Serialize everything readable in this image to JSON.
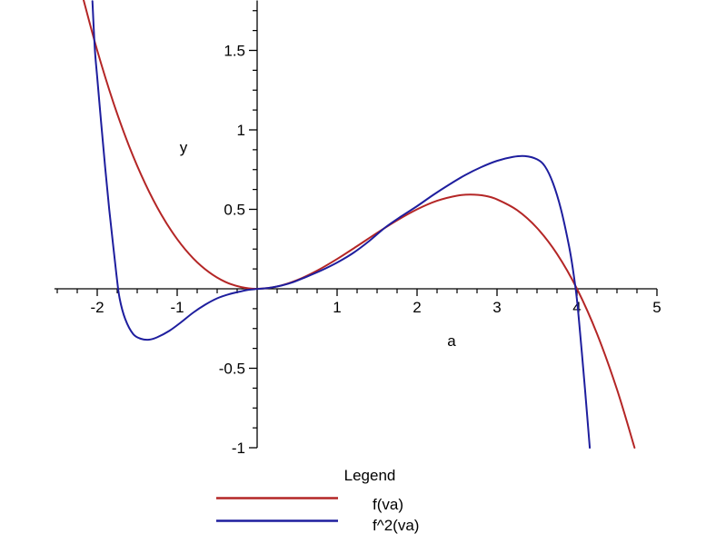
{
  "chart_data": {
    "type": "line",
    "title": "",
    "xlabel": "a",
    "ylabel": "y",
    "xlim": [
      -2.535,
      5.0
    ],
    "ylim": [
      -1.0,
      1.82
    ],
    "grid": false,
    "axis_color": "#000000",
    "x_major_ticks": [
      -2,
      -1,
      1,
      2,
      3,
      4,
      5
    ],
    "x_tick_labels": [
      "-2",
      "-1",
      "1",
      "2",
      "3",
      "4",
      "5"
    ],
    "x_minor_step": 0.25,
    "y_major_ticks": [
      1.5,
      1,
      0.5,
      -0.5,
      -1
    ],
    "y_tick_labels": [
      "1.5",
      "1",
      "0.5",
      "-0.5",
      "-1"
    ],
    "y_minor_step": 0.125,
    "legend_position": "bottom",
    "legend_title": "Legend",
    "series": [
      {
        "name": "f(va)",
        "color": "#b42626",
        "points": [
          [
            -2.17,
            1.816
          ],
          [
            -2.0,
            1.5
          ],
          [
            -1.8,
            1.175
          ],
          [
            -1.6,
            0.896
          ],
          [
            -1.4,
            0.662
          ],
          [
            -1.2,
            0.468
          ],
          [
            -1.0,
            0.3125
          ],
          [
            -0.8,
            0.192
          ],
          [
            -0.6,
            0.104
          ],
          [
            -0.4,
            0.044
          ],
          [
            -0.2,
            0.0105
          ],
          [
            0.0,
            0.0
          ],
          [
            0.25,
            0.0146
          ],
          [
            0.5,
            0.0547
          ],
          [
            0.75,
            0.1143
          ],
          [
            1.0,
            0.1875
          ],
          [
            1.25,
            0.2686
          ],
          [
            1.5,
            0.3516
          ],
          [
            1.75,
            0.4307
          ],
          [
            2.0,
            0.5
          ],
          [
            2.25,
            0.5537
          ],
          [
            2.5,
            0.5859
          ],
          [
            2.67,
            0.5926
          ],
          [
            2.85,
            0.585
          ],
          [
            3.0,
            0.5625
          ],
          [
            3.25,
            0.4951
          ],
          [
            3.5,
            0.3828
          ],
          [
            3.75,
            0.2197
          ],
          [
            4.0,
            0.0
          ],
          [
            4.25,
            -0.2822
          ],
          [
            4.5,
            -0.6328
          ],
          [
            4.72,
            -1.0
          ]
        ]
      },
      {
        "name": "f^2(va)",
        "color": "#1e1e9e",
        "points": [
          [
            -2.06,
            1.81
          ],
          [
            -2.03,
            1.51
          ],
          [
            -2.0,
            1.33
          ],
          [
            -1.95,
            1.04
          ],
          [
            -1.9,
            0.76
          ],
          [
            -1.85,
            0.5
          ],
          [
            -1.8,
            0.27
          ],
          [
            -1.76,
            0.09
          ],
          [
            -1.72,
            -0.06
          ],
          [
            -1.65,
            -0.19
          ],
          [
            -1.55,
            -0.285
          ],
          [
            -1.45,
            -0.315
          ],
          [
            -1.35,
            -0.32
          ],
          [
            -1.25,
            -0.305
          ],
          [
            -1.1,
            -0.265
          ],
          [
            -0.95,
            -0.21
          ],
          [
            -0.8,
            -0.15
          ],
          [
            -0.65,
            -0.1
          ],
          [
            -0.5,
            -0.06
          ],
          [
            -0.35,
            -0.034
          ],
          [
            -0.2,
            -0.016
          ],
          [
            -0.1,
            -0.006
          ],
          [
            0.0,
            -0.001
          ],
          [
            0.15,
            0.006
          ],
          [
            0.3,
            0.02
          ],
          [
            0.45,
            0.042
          ],
          [
            0.6,
            0.072
          ],
          [
            0.8,
            0.115
          ],
          [
            1.0,
            0.165
          ],
          [
            1.2,
            0.225
          ],
          [
            1.4,
            0.3
          ],
          [
            1.6,
            0.385
          ],
          [
            1.8,
            0.455
          ],
          [
            2.0,
            0.52
          ],
          [
            2.2,
            0.59
          ],
          [
            2.4,
            0.655
          ],
          [
            2.6,
            0.715
          ],
          [
            2.8,
            0.765
          ],
          [
            3.0,
            0.805
          ],
          [
            3.2,
            0.83
          ],
          [
            3.35,
            0.835
          ],
          [
            3.5,
            0.815
          ],
          [
            3.6,
            0.77
          ],
          [
            3.7,
            0.665
          ],
          [
            3.8,
            0.5
          ],
          [
            3.9,
            0.27
          ],
          [
            3.95,
            0.12
          ],
          [
            4.0,
            -0.07
          ],
          [
            4.05,
            -0.34
          ],
          [
            4.1,
            -0.63
          ],
          [
            4.16,
            -1.0
          ]
        ]
      }
    ]
  }
}
